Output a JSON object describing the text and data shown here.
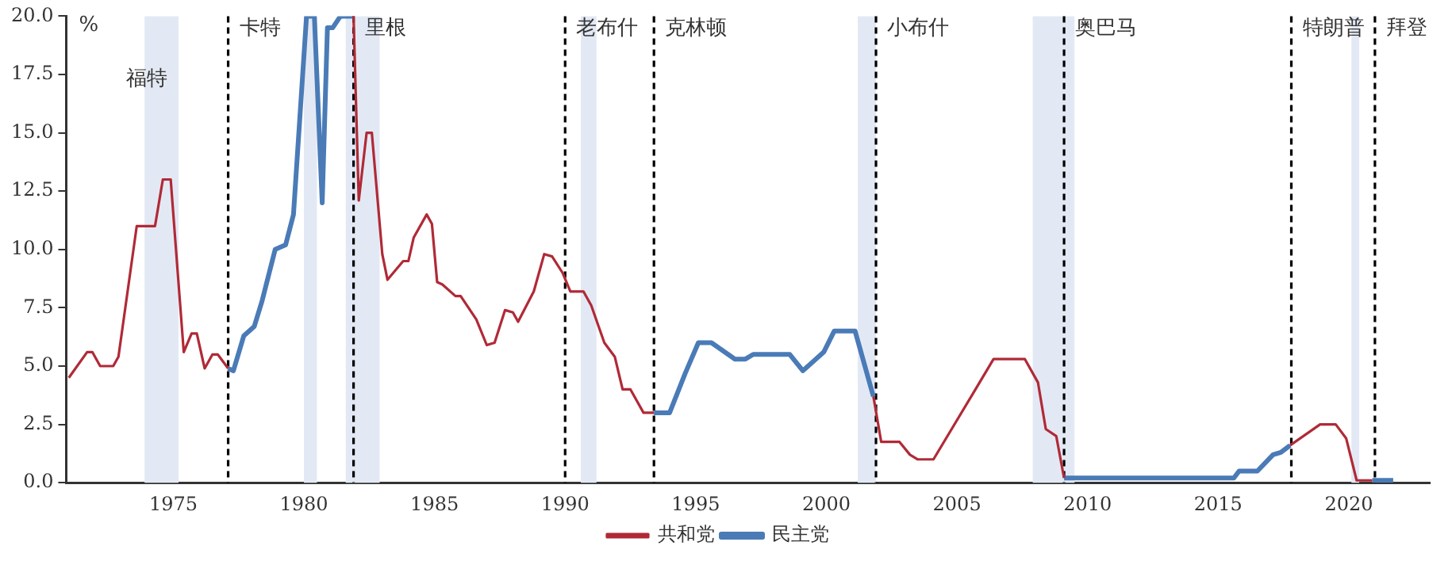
{
  "chart_data": {
    "type": "line",
    "ylabel": "%",
    "xlim": [
      1970.9,
      2023.1
    ],
    "xticks": [
      1975,
      1980,
      1985,
      1990,
      1995,
      2000,
      2005,
      2010,
      2015,
      2020
    ],
    "ylim": [
      0,
      20
    ],
    "yticks": [
      {
        "value": 0,
        "label": "0.0"
      },
      {
        "value": 2.5,
        "label": "2.5"
      },
      {
        "value": 5,
        "label": "5.0"
      },
      {
        "value": 7.5,
        "label": "7.5"
      },
      {
        "value": 10,
        "label": "10.0"
      },
      {
        "value": 12.5,
        "label": "12.5"
      },
      {
        "value": 15,
        "label": "15.0"
      },
      {
        "value": 17.5,
        "label": "17.5"
      },
      {
        "value": 20,
        "label": "20.0"
      }
    ],
    "grid": false,
    "legend": "bottom",
    "marker": "none",
    "line_style": "solid",
    "series": [
      {
        "name": "共和党",
        "color": "#b02a37",
        "x": [
          1971.0,
          1971.7,
          1971.9,
          1972.2,
          1972.7,
          1972.9,
          1973.6,
          1974.3,
          1974.6,
          1974.9,
          1975.4,
          1975.7,
          1975.9,
          1976.2,
          1976.5,
          1976.7,
          1977.1,
          1979.0,
          1981.9,
          1982.1,
          1982.4,
          1982.6,
          1983.0,
          1983.2,
          1983.8,
          1984.0,
          1984.2,
          1984.7,
          1984.9,
          1985.1,
          1985.3,
          1985.8,
          1986.0,
          1986.6,
          1987.0,
          1987.3,
          1987.7,
          1988.0,
          1988.2,
          1988.8,
          1989.2,
          1989.5,
          1989.9,
          1990.2,
          1990.7,
          1991.0,
          1991.5,
          1991.9,
          1992.2,
          1992.5,
          1993.0,
          1993.4,
          1997.0,
          2001.8,
          2002.1,
          2002.8,
          2003.2,
          2003.5,
          2004.1,
          2005.6,
          2006.4,
          2007.6,
          2008.1,
          2008.4,
          2008.8,
          2009.1,
          2013.0,
          2017.75,
          2018.9,
          2019.5,
          2019.9,
          2020.3,
          2020.9
        ],
        "values": [
          4.5,
          5.6,
          5.6,
          5.0,
          5.0,
          5.4,
          11.0,
          11.0,
          13.0,
          13.0,
          5.6,
          6.4,
          6.4,
          4.9,
          5.5,
          5.5,
          4.9,
          null,
          20.0,
          12.1,
          15.0,
          15.0,
          9.8,
          8.7,
          9.5,
          9.5,
          10.5,
          11.5,
          11.1,
          8.6,
          8.5,
          8.0,
          8.0,
          7.0,
          5.9,
          6.0,
          7.4,
          7.3,
          6.9,
          8.2,
          9.8,
          9.7,
          9.0,
          8.2,
          8.2,
          7.6,
          6.0,
          5.4,
          4.0,
          4.0,
          3.0,
          3.0,
          null,
          3.7,
          1.75,
          1.75,
          1.2,
          1.0,
          1.0,
          3.8,
          5.3,
          5.3,
          4.3,
          2.3,
          2.0,
          0.2,
          null,
          1.6,
          2.5,
          2.5,
          1.9,
          0.1,
          0.1
        ]
      },
      {
        "name": "民主党",
        "color": "#4a7bb7",
        "x": [
          1977.1,
          1977.3,
          1977.7,
          1978.1,
          1978.4,
          1978.9,
          1979.3,
          1979.6,
          1980.1,
          1980.4,
          1980.7,
          1980.9,
          1981.1,
          1981.4,
          1981.9,
          1988.0,
          1993.4,
          1994.0,
          1994.6,
          1995.1,
          1995.6,
          1996.5,
          1996.9,
          1997.2,
          1998.6,
          1999.1,
          1999.9,
          2000.3,
          2001.1,
          2001.8,
          2005.0,
          2009.1,
          2015.6,
          2015.8,
          2016.5,
          2017.1,
          2017.4,
          2017.75,
          2019.0,
          2020.9,
          2021.7
        ],
        "values": [
          4.9,
          4.8,
          6.3,
          6.7,
          7.8,
          10.0,
          10.2,
          11.5,
          20.0,
          20.0,
          12.0,
          19.5,
          19.5,
          20.0,
          20.0,
          null,
          3.0,
          3.0,
          4.7,
          6.0,
          6.0,
          5.3,
          5.3,
          5.5,
          5.5,
          4.8,
          5.6,
          6.5,
          6.5,
          3.7,
          null,
          0.2,
          0.2,
          0.5,
          0.5,
          1.2,
          1.3,
          1.6,
          null,
          0.1,
          0.1
        ]
      }
    ],
    "bands": [
      {
        "axis": "x",
        "from": 1973.9,
        "to": 1975.2,
        "color": "#e3e9f4"
      },
      {
        "axis": "x",
        "from": 1980.0,
        "to": 1980.5,
        "color": "#e3e9f4"
      },
      {
        "axis": "x",
        "from": 1981.6,
        "to": 1982.9,
        "color": "#e3e9f4"
      },
      {
        "axis": "x",
        "from": 1990.6,
        "to": 1991.2,
        "color": "#e3e9f4"
      },
      {
        "axis": "x",
        "from": 2001.2,
        "to": 2001.9,
        "color": "#e3e9f4"
      },
      {
        "axis": "x",
        "from": 2007.9,
        "to": 2009.5,
        "color": "#e3e9f4"
      },
      {
        "axis": "x",
        "from": 2020.1,
        "to": 2020.4,
        "color": "#e3e9f4"
      }
    ],
    "ref_lines": [
      {
        "axis": "x",
        "value": 1977.1,
        "color": "#000000",
        "line_style": "dashed"
      },
      {
        "axis": "x",
        "value": 1981.9,
        "color": "#000000",
        "line_style": "dashed"
      },
      {
        "axis": "x",
        "value": 1990.0,
        "color": "#000000",
        "line_style": "dashed"
      },
      {
        "axis": "x",
        "value": 1993.4,
        "color": "#000000",
        "line_style": "dashed"
      },
      {
        "axis": "x",
        "value": 2001.9,
        "color": "#000000",
        "line_style": "dashed"
      },
      {
        "axis": "x",
        "value": 2009.1,
        "color": "#000000",
        "line_style": "dashed"
      },
      {
        "axis": "x",
        "value": 2017.8,
        "color": "#000000",
        "line_style": "dashed"
      },
      {
        "axis": "x",
        "value": 2021.0,
        "color": "#000000",
        "line_style": "dashed"
      }
    ],
    "annotations": [
      "福特",
      "卡特",
      "里根",
      "老布什",
      "克林顿",
      "小布什",
      "奥巴马",
      "特朗普",
      "拜登"
    ]
  }
}
